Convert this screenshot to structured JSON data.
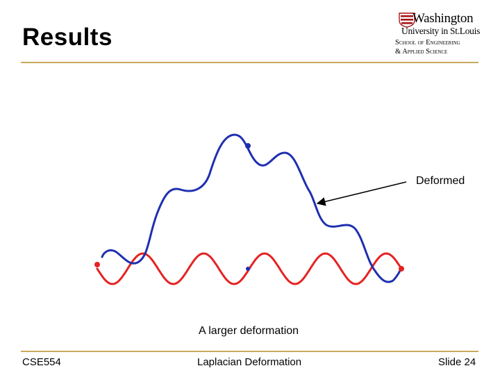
{
  "slide": {
    "title": "Results",
    "annotation": "Deformed",
    "caption": "A larger deformation"
  },
  "logo": {
    "wordmark": "Washington",
    "line2": "University in St.Louis",
    "line3": "School of Engineering",
    "line4": "& Applied Science"
  },
  "footer": {
    "left": "CSE554",
    "center": "Laplacian Deformation",
    "right": "Slide 24"
  },
  "colors": {
    "original_curve": "#e52222",
    "deformed_curve": "#1e2fb0",
    "rule": "#c8a85a",
    "logo_red": "#a51417"
  }
}
